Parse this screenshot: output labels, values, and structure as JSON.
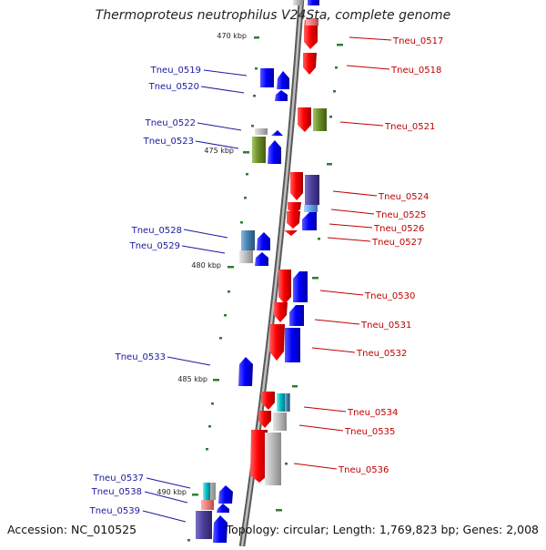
{
  "title": "Thermoproteus neutrophilus V24Sta, complete genome",
  "accession": "Accession: NC_010525",
  "topology": "Topology: circular; Length: 1,769,823 bp; Genes: 2,008",
  "colors": {
    "left_label": "#1a1aa0",
    "right_label": "#c00000",
    "forward_gene": "#ff0000",
    "reverse_gene": "#0000ff",
    "backbone": "#8a8a8a",
    "tick": "#2e7d32"
  },
  "scale_marks": [
    "470 kbp",
    "475 kbp",
    "480 kbp",
    "485 kbp",
    "490 kbp"
  ],
  "left_labels": [
    "Tneu_0519",
    "Tneu_0520",
    "Tneu_0522",
    "Tneu_0523",
    "Tneu_0528",
    "Tneu_0529",
    "Tneu_0533",
    "Tneu_0537",
    "Tneu_0538",
    "Tneu_0539"
  ],
  "right_labels": [
    "Tneu_0517",
    "Tneu_0518",
    "Tneu_0521",
    "Tneu_0524",
    "Tneu_0525",
    "Tneu_0526",
    "Tneu_0527",
    "Tneu_0530",
    "Tneu_0531",
    "Tneu_0532",
    "Tneu_0534",
    "Tneu_0535",
    "Tneu_0536"
  ]
}
